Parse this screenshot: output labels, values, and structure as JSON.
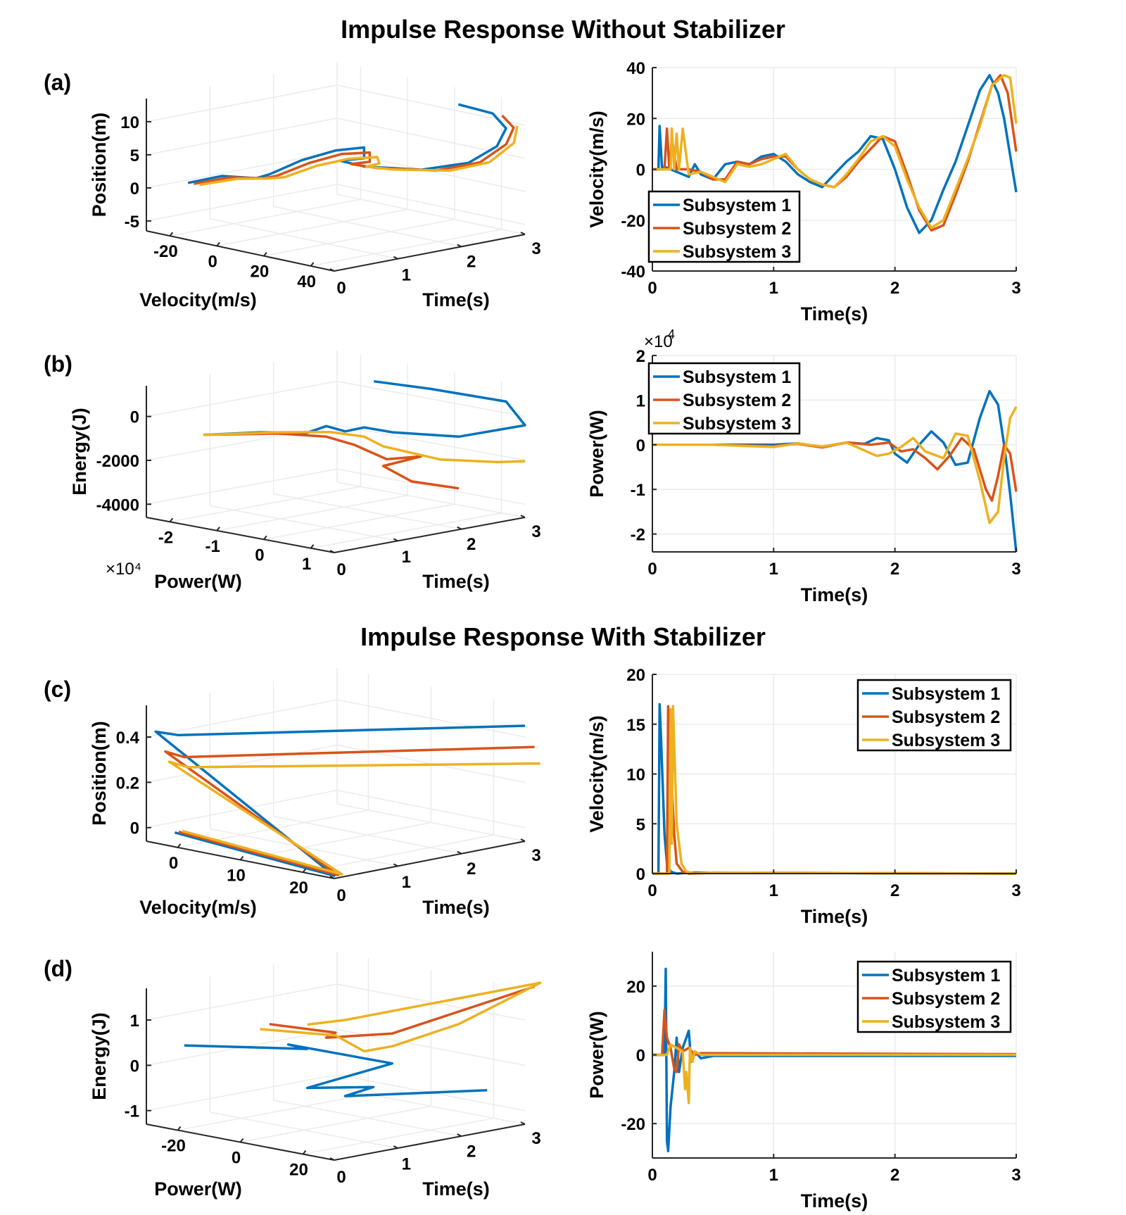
{
  "titles": {
    "top": "Impulse Response Without Stabilizer",
    "bottom": "Impulse Response With Stabilizer"
  },
  "panel_labels": [
    "(a)",
    "(b)",
    "(c)",
    "(d)"
  ],
  "colors": {
    "s1": "#0072BD",
    "s2": "#D95319",
    "s3": "#EDB120",
    "axis": "#262626",
    "grid": "#ebebeb"
  },
  "chart_data": [
    {
      "id": "a3d",
      "type": "line",
      "projection": "3d",
      "xlabel": "Velocity(m/s)",
      "ylabel": "Time(s)",
      "zlabel": "Position(m)",
      "xticks": [
        "-20",
        "0",
        "20",
        "40"
      ],
      "yticks": [
        "0",
        "1",
        "2",
        "3"
      ],
      "zticks": [
        "-5",
        "0",
        "5",
        "10"
      ],
      "xlim": [
        -20,
        50
      ],
      "ylim": [
        0,
        3
      ],
      "zlim": [
        -5,
        10
      ],
      "series_names": [
        "Subsystem 1",
        "Subsystem 2",
        "Subsystem 3"
      ]
    },
    {
      "id": "a2d",
      "type": "line",
      "title": "",
      "xlabel": "Time(s)",
      "ylabel": "Velocity(m/s)",
      "xlim": [
        0,
        3
      ],
      "ylim": [
        -40,
        40
      ],
      "xticks": [
        "0",
        "1",
        "2",
        "3"
      ],
      "yticks": [
        "-40",
        "-20",
        "0",
        "20",
        "40"
      ],
      "legend": "bottom-left",
      "series": [
        {
          "name": "Subsystem 1",
          "x": [
            0,
            0.05,
            0.06,
            0.08,
            0.1,
            0.15,
            0.2,
            0.3,
            0.35,
            0.4,
            0.5,
            0.6,
            0.7,
            0.8,
            0.9,
            1.0,
            1.1,
            1.2,
            1.3,
            1.4,
            1.5,
            1.6,
            1.7,
            1.8,
            1.9,
            2.0,
            2.1,
            2.2,
            2.3,
            2.4,
            2.5,
            2.6,
            2.7,
            2.78,
            2.85,
            2.9,
            3.0
          ],
          "y": [
            0,
            0,
            17,
            0,
            1,
            0,
            -1,
            -3,
            2,
            -2,
            -4,
            2,
            3,
            2,
            5,
            6,
            3,
            -2,
            -5,
            -7,
            -2,
            3,
            7,
            13,
            12,
            0,
            -15,
            -25,
            -20,
            -8,
            3,
            17,
            31,
            37,
            30,
            20,
            -9
          ]
        },
        {
          "name": "Subsystem 2",
          "x": [
            0,
            0.1,
            0.12,
            0.14,
            0.16,
            0.2,
            0.3,
            0.4,
            0.5,
            0.6,
            0.7,
            0.8,
            0.9,
            1.0,
            1.1,
            1.2,
            1.3,
            1.4,
            1.5,
            1.6,
            1.7,
            1.8,
            1.9,
            2.0,
            2.1,
            2.2,
            2.3,
            2.4,
            2.5,
            2.6,
            2.7,
            2.8,
            2.87,
            2.93,
            3.0
          ],
          "y": [
            0,
            0,
            16,
            0,
            12,
            0,
            0,
            -1,
            -4,
            -4,
            3,
            2,
            4,
            5,
            5,
            0,
            -4,
            -6,
            -7,
            -3,
            3,
            8,
            13,
            11,
            -2,
            -16,
            -24,
            -22,
            -10,
            3,
            18,
            33,
            37,
            30,
            7
          ]
        },
        {
          "name": "Subsystem 3",
          "x": [
            0,
            0.15,
            0.16,
            0.18,
            0.2,
            0.22,
            0.25,
            0.3,
            0.4,
            0.5,
            0.6,
            0.7,
            0.8,
            0.9,
            1.0,
            1.1,
            1.2,
            1.3,
            1.4,
            1.5,
            1.6,
            1.7,
            1.8,
            1.9,
            2.0,
            2.1,
            2.2,
            2.3,
            2.4,
            2.5,
            2.6,
            2.7,
            2.8,
            2.9,
            2.95,
            3.0
          ],
          "y": [
            0,
            0,
            16,
            0,
            14,
            0,
            16,
            -2,
            -1,
            -3,
            -5,
            2,
            1,
            2,
            4,
            6,
            0,
            -4,
            -6,
            -7,
            -2,
            4,
            11,
            13,
            9,
            -4,
            -15,
            -23,
            -20,
            -8,
            4,
            17,
            33,
            37,
            36,
            18
          ]
        }
      ]
    },
    {
      "id": "b3d",
      "type": "line",
      "projection": "3d",
      "xlabel": "Power(W)",
      "ylabel": "Time(s)",
      "zlabel": "Energy(J)",
      "xticks": [
        "-2",
        "-1",
        "0",
        "1"
      ],
      "yticks": [
        "0",
        "1",
        "2",
        "3"
      ],
      "zticks": [
        "-4000",
        "-2000",
        "0"
      ],
      "xlim": [
        -2.4,
        1.4
      ],
      "ylim": [
        0,
        3
      ],
      "zlim": [
        -5000,
        800
      ],
      "x_multiplier": "×10⁴",
      "series_names": [
        "Subsystem 1",
        "Subsystem 2",
        "Subsystem 3"
      ]
    },
    {
      "id": "b2d",
      "type": "line",
      "xlabel": "Time(s)",
      "ylabel": "Power(W)",
      "xlim": [
        0,
        3
      ],
      "ylim": [
        -2.4,
        2
      ],
      "xticks": [
        "0",
        "1",
        "2",
        "3"
      ],
      "yticks": [
        "-2",
        "-1",
        "0",
        "1",
        "2"
      ],
      "y_multiplier_base": "×10",
      "y_multiplier_exp": "4",
      "legend": "top-left",
      "series": [
        {
          "name": "Subsystem 1",
          "x": [
            0,
            0.5,
            1.0,
            1.2,
            1.4,
            1.6,
            1.75,
            1.85,
            1.95,
            2.0,
            2.1,
            2.2,
            2.3,
            2.4,
            2.5,
            2.6,
            2.7,
            2.78,
            2.85,
            2.9,
            2.95,
            3.0
          ],
          "y": [
            0,
            0,
            0,
            0.03,
            -0.05,
            0.05,
            0.02,
            0.15,
            0.1,
            -0.2,
            -0.4,
            0.0,
            0.3,
            0.05,
            -0.45,
            -0.4,
            0.6,
            1.2,
            0.9,
            0.0,
            -1.1,
            -2.4
          ]
        },
        {
          "name": "Subsystem 2",
          "x": [
            0,
            0.5,
            1.0,
            1.2,
            1.4,
            1.6,
            1.8,
            1.95,
            2.05,
            2.15,
            2.25,
            2.35,
            2.45,
            2.55,
            2.65,
            2.75,
            2.8,
            2.85,
            2.9,
            2.95,
            3.0
          ],
          "y": [
            0,
            0,
            -0.03,
            0.02,
            -0.06,
            0.05,
            0.0,
            0.05,
            -0.15,
            -0.1,
            -0.3,
            -0.55,
            -0.25,
            0.15,
            -0.1,
            -1.0,
            -1.25,
            -0.7,
            0.0,
            -0.2,
            -1.05
          ]
        },
        {
          "name": "Subsystem 3",
          "x": [
            0,
            0.5,
            1.0,
            1.2,
            1.4,
            1.6,
            1.85,
            1.95,
            2.05,
            2.15,
            2.25,
            2.4,
            2.5,
            2.6,
            2.7,
            2.78,
            2.85,
            2.9,
            2.95,
            3.0
          ],
          "y": [
            0,
            0,
            -0.05,
            0.03,
            -0.04,
            0.05,
            -0.25,
            -0.2,
            -0.05,
            0.15,
            -0.15,
            -0.3,
            0.25,
            0.2,
            -0.8,
            -1.75,
            -1.5,
            -0.3,
            0.6,
            0.85
          ]
        }
      ]
    },
    {
      "id": "c3d",
      "type": "line",
      "projection": "3d",
      "xlabel": "Velocity(m/s)",
      "ylabel": "Time(s)",
      "zlabel": "Position(m)",
      "xticks": [
        "0",
        "10",
        "20"
      ],
      "yticks": [
        "0",
        "1",
        "2",
        "3"
      ],
      "zticks": [
        "0",
        "0.2",
        "0.4"
      ],
      "xlim": [
        0,
        20
      ],
      "ylim": [
        0,
        3
      ],
      "zlim": [
        0,
        0.55
      ],
      "series_names": [
        "Subsystem 1",
        "Subsystem 2",
        "Subsystem 3"
      ]
    },
    {
      "id": "c2d",
      "type": "line",
      "xlabel": "Time(s)",
      "ylabel": "Velocity(m/s)",
      "xlim": [
        0,
        3
      ],
      "ylim": [
        0,
        20
      ],
      "xticks": [
        "0",
        "1",
        "2",
        "3"
      ],
      "yticks": [
        "0",
        "5",
        "10",
        "15",
        "20"
      ],
      "legend": "top-right",
      "series": [
        {
          "name": "Subsystem 1",
          "x": [
            0,
            0.05,
            0.06,
            0.07,
            0.1,
            0.12,
            0.15,
            0.2,
            0.3,
            3.0
          ],
          "y": [
            0,
            0,
            17,
            14,
            4,
            1,
            0.2,
            0,
            0.1,
            0
          ]
        },
        {
          "name": "Subsystem 2",
          "x": [
            0,
            0.12,
            0.13,
            0.14,
            0.18,
            0.2,
            0.25,
            0.3,
            0.5,
            3.0
          ],
          "y": [
            0,
            0,
            16.8,
            14,
            4,
            1,
            0.2,
            0,
            0.1,
            0
          ]
        },
        {
          "name": "Subsystem 3",
          "x": [
            0,
            0.14,
            0.15,
            0.16,
            0.17,
            0.18,
            0.2,
            0.24,
            0.28,
            0.35,
            0.5,
            3.0
          ],
          "y": [
            0,
            0,
            16.5,
            3,
            16.8,
            13,
            5,
            1,
            0.2,
            0,
            0.1,
            0
          ]
        }
      ]
    },
    {
      "id": "d3d",
      "type": "line",
      "projection": "3d",
      "xlabel": "Power(W)",
      "ylabel": "Time(s)",
      "zlabel": "Energy(J)",
      "xticks": [
        "-20",
        "0",
        "20"
      ],
      "yticks": [
        "0",
        "1",
        "2",
        "3"
      ],
      "zticks": [
        "-1",
        "0",
        "1"
      ],
      "xlim": [
        -25,
        30
      ],
      "ylim": [
        0,
        3
      ],
      "zlim": [
        -1.4,
        1.1
      ],
      "series_names": [
        "Subsystem 1",
        "Subsystem 2",
        "Subsystem 3"
      ]
    },
    {
      "id": "d2d",
      "type": "line",
      "xlabel": "Time(s)",
      "ylabel": "Power(W)",
      "xlim": [
        0,
        3
      ],
      "ylim": [
        -30,
        30
      ],
      "xticks": [
        "0",
        "1",
        "2",
        "3"
      ],
      "yticks": [
        "-20",
        "0",
        "20"
      ],
      "legend": "top-right",
      "series": [
        {
          "name": "Subsystem 1",
          "x": [
            0,
            0.1,
            0.11,
            0.12,
            0.13,
            0.15,
            0.18,
            0.2,
            0.22,
            0.25,
            0.28,
            0.3,
            0.32,
            0.35,
            0.4,
            0.5,
            3.0
          ],
          "y": [
            0,
            0,
            25,
            -25,
            -28,
            -15,
            -5,
            5,
            -5,
            2,
            5,
            7,
            -2,
            1,
            -1,
            -0.3,
            -0.3
          ]
        },
        {
          "name": "Subsystem 2",
          "x": [
            0,
            0.08,
            0.1,
            0.12,
            0.15,
            0.18,
            0.2,
            0.22,
            0.25,
            0.3,
            0.35,
            0.4,
            3.0
          ],
          "y": [
            0,
            0,
            13,
            5,
            2,
            -4,
            -5,
            3,
            1,
            2,
            0,
            0.5,
            0.2
          ]
        },
        {
          "name": "Subsystem 3",
          "x": [
            0,
            0.12,
            0.15,
            0.2,
            0.25,
            0.27,
            0.28,
            0.3,
            0.31,
            0.33,
            0.35,
            0.4,
            3.0
          ],
          "y": [
            0,
            0,
            3,
            2,
            1,
            -10,
            -5,
            -14,
            2,
            -2,
            1,
            0,
            0
          ]
        }
      ]
    }
  ]
}
